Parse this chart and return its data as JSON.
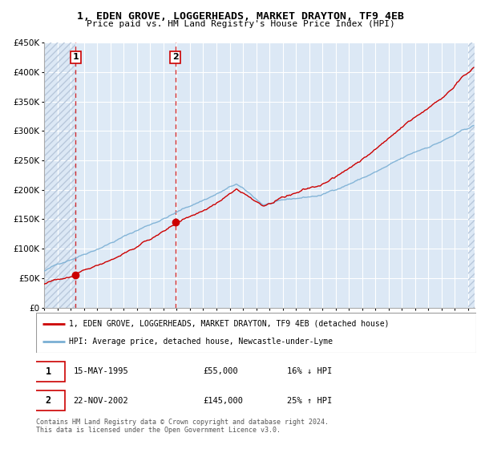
{
  "title": "1, EDEN GROVE, LOGGERHEADS, MARKET DRAYTON, TF9 4EB",
  "subtitle": "Price paid vs. HM Land Registry's House Price Index (HPI)",
  "legend_line1": "1, EDEN GROVE, LOGGERHEADS, MARKET DRAYTON, TF9 4EB (detached house)",
  "legend_line2": "HPI: Average price, detached house, Newcastle-under-Lyme",
  "transaction1_label": "1",
  "transaction1_date": "15-MAY-1995",
  "transaction1_price": "£55,000",
  "transaction1_hpi": "16% ↓ HPI",
  "transaction2_label": "2",
  "transaction2_date": "22-NOV-2002",
  "transaction2_price": "£145,000",
  "transaction2_hpi": "25% ↑ HPI",
  "footer": "Contains HM Land Registry data © Crown copyright and database right 2024.\nThis data is licensed under the Open Government Licence v3.0.",
  "ylim": [
    0,
    450000
  ],
  "yticks": [
    0,
    50000,
    100000,
    150000,
    200000,
    250000,
    300000,
    350000,
    400000,
    450000
  ],
  "transaction1_x": 1995.37,
  "transaction1_y": 55000,
  "transaction2_x": 2002.9,
  "transaction2_y": 145000,
  "xmin": 1993.0,
  "xmax": 2025.5,
  "bg_color": "#dce8f5",
  "hatch_color": "#b8c8dc",
  "grid_color": "#ffffff",
  "red_line_color": "#cc0000",
  "blue_line_color": "#7aafd4"
}
